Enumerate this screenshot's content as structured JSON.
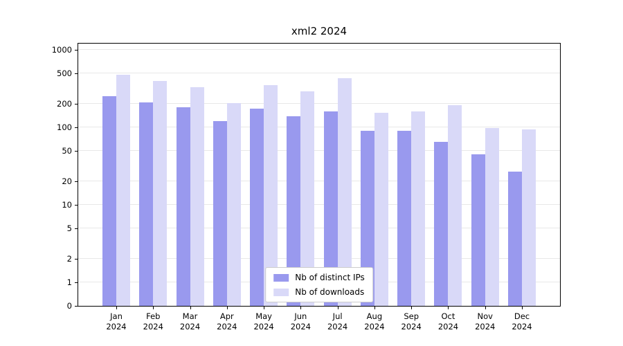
{
  "chart_data": {
    "type": "bar",
    "title": "xml2 2024",
    "categories": [
      "Jan 2024",
      "Feb 2024",
      "Mar 2024",
      "Apr 2024",
      "May 2024",
      "Jun 2024",
      "Jul 2024",
      "Aug 2024",
      "Sep 2024",
      "Oct 2024",
      "Nov 2024",
      "Dec 2024"
    ],
    "series": [
      {
        "name": "Nb of distinct IPs",
        "color": "#9999ee",
        "values": [
          250,
          210,
          180,
          120,
          175,
          140,
          160,
          90,
          90,
          65,
          45,
          27
        ]
      },
      {
        "name": "Nb of downloads",
        "color": "#d9d9f8",
        "values": [
          480,
          400,
          330,
          205,
          350,
          290,
          430,
          155,
          160,
          195,
          98,
          95
        ]
      }
    ],
    "yscale": "symlog",
    "yticks": [
      0,
      1,
      2,
      5,
      10,
      20,
      50,
      100,
      200,
      500,
      1000
    ],
    "ylim": [
      0,
      2000
    ],
    "grid": true,
    "legend_position": "lower center inside",
    "colors": {
      "frame": "#000000",
      "gridline": "#e8e8e8",
      "background": "#ffffff"
    }
  }
}
